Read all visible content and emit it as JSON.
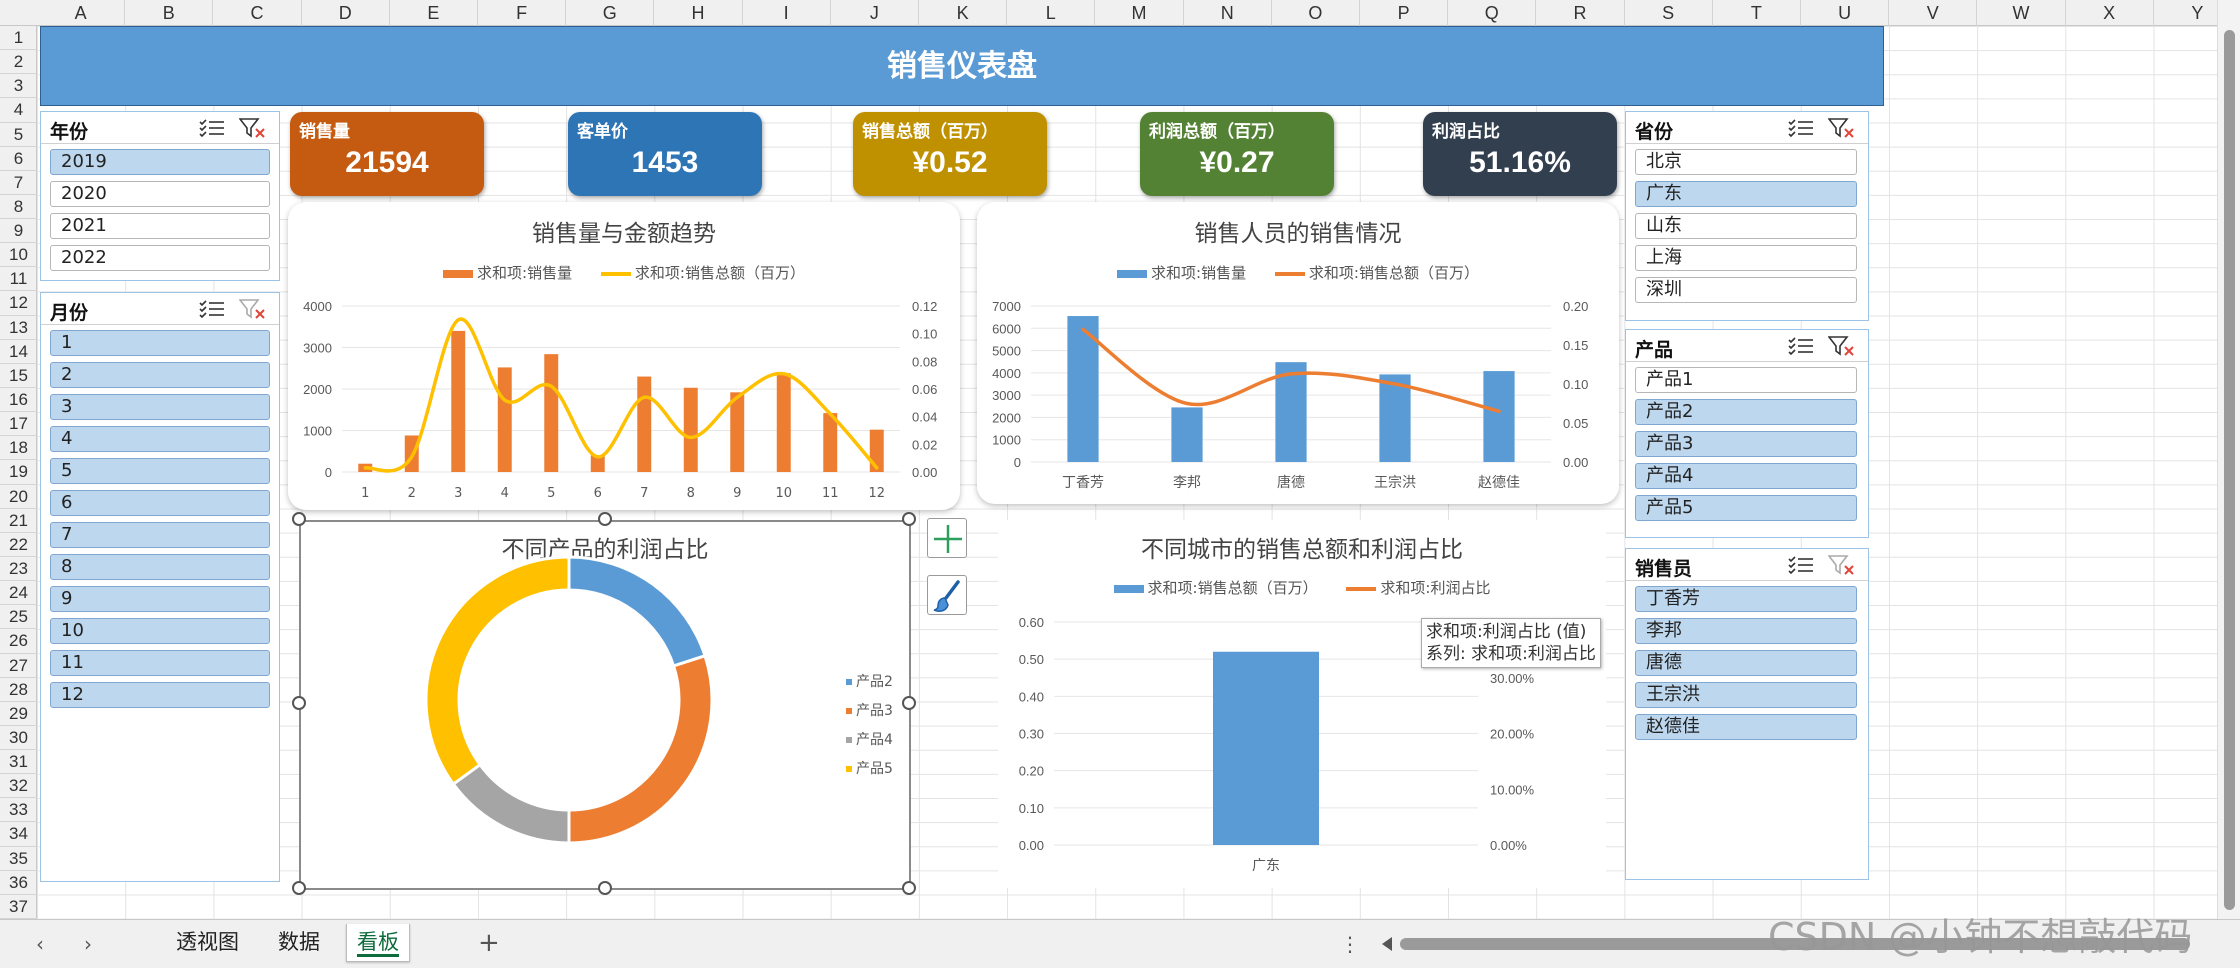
{
  "sheet": {
    "columns": [
      "A",
      "B",
      "C",
      "D",
      "E",
      "F",
      "G",
      "H",
      "I",
      "J",
      "K",
      "L",
      "M",
      "N",
      "O",
      "P",
      "Q",
      "R",
      "S",
      "T",
      "U",
      "V",
      "W",
      "X",
      "Y"
    ],
    "rows": [
      "1",
      "2",
      "3",
      "4",
      "5",
      "6",
      "7",
      "8",
      "9",
      "10",
      "11",
      "12",
      "13",
      "14",
      "15",
      "16",
      "17",
      "18",
      "19",
      "20",
      "21",
      "22",
      "23",
      "24",
      "25",
      "26",
      "27",
      "28",
      "29",
      "30",
      "31",
      "32",
      "33",
      "34",
      "35",
      "36",
      "37"
    ]
  },
  "banner": {
    "title": "销售仪表盘"
  },
  "slicers": {
    "year": {
      "title": "年份",
      "items": [
        {
          "label": "2019",
          "selected": true
        },
        {
          "label": "2020",
          "selected": false
        },
        {
          "label": "2021",
          "selected": false
        },
        {
          "label": "2022",
          "selected": false
        }
      ]
    },
    "month": {
      "title": "月份",
      "items": [
        {
          "label": "1",
          "selected": true
        },
        {
          "label": "2",
          "selected": true
        },
        {
          "label": "3",
          "selected": true
        },
        {
          "label": "4",
          "selected": true
        },
        {
          "label": "5",
          "selected": true
        },
        {
          "label": "6",
          "selected": true
        },
        {
          "label": "7",
          "selected": true
        },
        {
          "label": "8",
          "selected": true
        },
        {
          "label": "9",
          "selected": true
        },
        {
          "label": "10",
          "selected": true
        },
        {
          "label": "11",
          "selected": true
        },
        {
          "label": "12",
          "selected": true
        }
      ]
    },
    "province": {
      "title": "省份",
      "items": [
        {
          "label": "北京",
          "selected": false
        },
        {
          "label": "广东",
          "selected": true
        },
        {
          "label": "山东",
          "selected": false
        },
        {
          "label": "上海",
          "selected": false
        },
        {
          "label": "深圳",
          "selected": false
        }
      ]
    },
    "product": {
      "title": "产品",
      "items": [
        {
          "label": "产品1",
          "selected": false
        },
        {
          "label": "产品2",
          "selected": true
        },
        {
          "label": "产品3",
          "selected": true
        },
        {
          "label": "产品4",
          "selected": true
        },
        {
          "label": "产品5",
          "selected": true
        }
      ]
    },
    "salesperson": {
      "title": "销售员",
      "items": [
        {
          "label": "丁香芳",
          "selected": true
        },
        {
          "label": "李邦",
          "selected": true
        },
        {
          "label": "唐德",
          "selected": true
        },
        {
          "label": "王宗洪",
          "selected": true
        },
        {
          "label": "赵德佳",
          "selected": true
        }
      ]
    }
  },
  "kpis": [
    {
      "label": "销售量",
      "value": "21594",
      "color": "#c55a11"
    },
    {
      "label": "客单价",
      "value": "1453",
      "color": "#2e75b6"
    },
    {
      "label": "销售总额（百万）",
      "value": "¥0.52",
      "color": "#bf9000"
    },
    {
      "label": "利润总额（百万）",
      "value": "¥0.27",
      "color": "#548235"
    },
    {
      "label": "利润占比",
      "value": "51.16%",
      "color": "#323f4f"
    }
  ],
  "chart_data": [
    {
      "type": "bar",
      "title": "销售量与金额趋势",
      "categories": [
        "1",
        "2",
        "3",
        "4",
        "5",
        "6",
        "7",
        "8",
        "9",
        "10",
        "11",
        "12"
      ],
      "series": [
        {
          "name": "求和项:销售量",
          "kind": "bar",
          "axis": "left",
          "color": "#ed7d31",
          "values": [
            200,
            880,
            3400,
            2520,
            2840,
            400,
            2300,
            2030,
            1920,
            2380,
            1420,
            1020
          ]
        },
        {
          "name": "求和项:销售总额（百万）",
          "kind": "line",
          "axis": "right",
          "color": "#ffc000",
          "values": [
            0.003,
            0.011,
            0.11,
            0.052,
            0.062,
            0.011,
            0.054,
            0.025,
            0.054,
            0.071,
            0.042,
            0.003
          ]
        }
      ],
      "ylim": [
        0,
        4000
      ],
      "yticks": [
        "0",
        "1000",
        "2000",
        "3000",
        "4000"
      ],
      "y2lim": [
        0,
        0.12
      ],
      "y2ticks": [
        "0.00",
        "0.02",
        "0.04",
        "0.06",
        "0.08",
        "0.10",
        "0.12"
      ]
    },
    {
      "type": "bar",
      "title": "销售人员的销售情况",
      "categories": [
        "丁香芳",
        "李邦",
        "唐德",
        "王宗洪",
        "赵德佳"
      ],
      "series": [
        {
          "name": "求和项:销售量",
          "kind": "bar",
          "axis": "left",
          "color": "#5b9bd5",
          "values": [
            6550,
            2450,
            4480,
            3930,
            4080
          ]
        },
        {
          "name": "求和项:销售总额（百万）",
          "kind": "line",
          "axis": "right",
          "color": "#ed7d31",
          "values": [
            0.17,
            0.075,
            0.113,
            0.1,
            0.065
          ]
        }
      ],
      "ylim": [
        0,
        7000
      ],
      "yticks": [
        "0",
        "1000",
        "2000",
        "3000",
        "4000",
        "5000",
        "6000",
        "7000"
      ],
      "y2lim": [
        0,
        0.2
      ],
      "y2ticks": [
        "0.00",
        "0.05",
        "0.10",
        "0.15",
        "0.20"
      ]
    },
    {
      "type": "pie",
      "title": "不同产品的利润占比",
      "categories": [
        "产品2",
        "产品3",
        "产品4",
        "产品5"
      ],
      "values": [
        0.2,
        0.3,
        0.15,
        0.35
      ],
      "colors": [
        "#5b9bd5",
        "#ed7d31",
        "#a5a5a5",
        "#ffc000"
      ],
      "legend": "right"
    },
    {
      "type": "bar",
      "title": "不同城市的销售总额和利润占比",
      "categories": [
        "广东"
      ],
      "series": [
        {
          "name": "求和项:销售总额（百万）",
          "kind": "bar",
          "axis": "left",
          "color": "#5b9bd5",
          "values": [
            0.52
          ]
        },
        {
          "name": "求和项:利润占比",
          "kind": "line",
          "axis": "right",
          "color": "#ed7d31",
          "values": [
            0.5116
          ]
        }
      ],
      "ylim": [
        0,
        0.6
      ],
      "yticks": [
        "0.00",
        "0.10",
        "0.20",
        "0.30",
        "0.40",
        "0.50",
        "0.60"
      ],
      "y2ticks": [
        "0.00%",
        "10.00%",
        "20.00%",
        "30.00%",
        "40.00%"
      ]
    }
  ],
  "tooltip": {
    "line1": "求和项:利润占比 (值)",
    "line2": "系列: 求和项:利润占比"
  },
  "tabs": [
    {
      "label": "透视图",
      "active": false
    },
    {
      "label": "数据",
      "active": false
    },
    {
      "label": "看板",
      "active": true
    }
  ],
  "add_sheet": "+",
  "watermark": "CSDN @小钟不想敲代码"
}
